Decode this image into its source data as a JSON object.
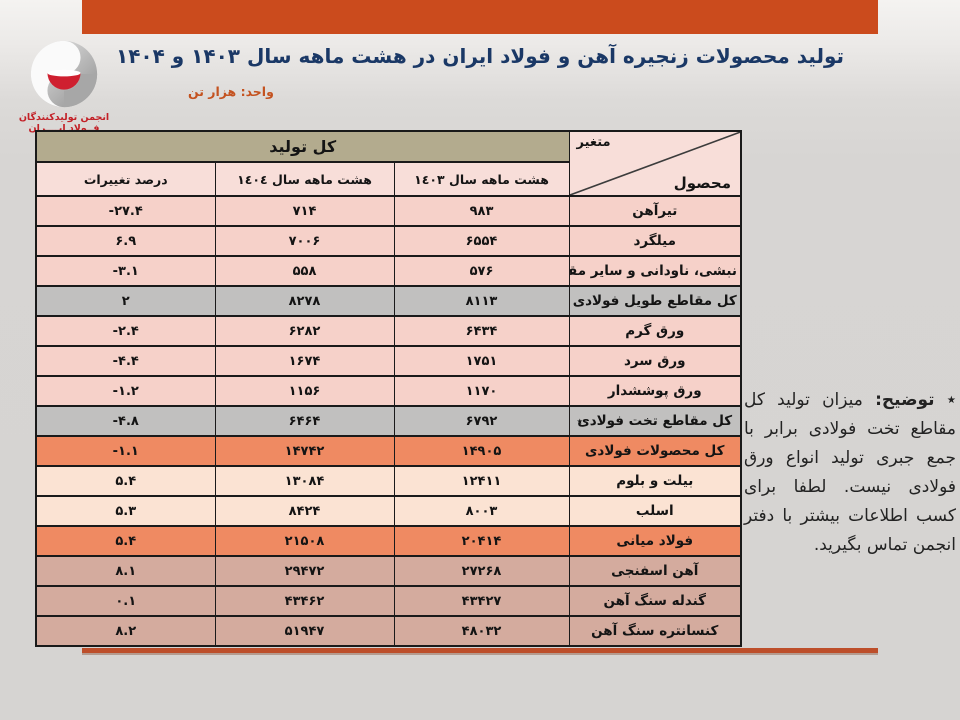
{
  "page": {
    "title": "تولید محصولات زنجیره آهن و فولاد ایران در هشت ماهه سال ۱۴۰۳ و ۱۴۰۴",
    "unit_label": "واحد: هزار تن"
  },
  "logo": {
    "line1": "انجمن تولیدکنندگان",
    "line2": "فــولاد ایــــران"
  },
  "table": {
    "corner": {
      "top": "متغیر",
      "bottom": "محصول"
    },
    "group_header": "کل تولید",
    "col_headers": [
      "هشت ماهه سال ١٤٠٣",
      "هشت ماهه سال ١٤٠٤",
      "درصد تغییرات"
    ],
    "star_glyph": "٭",
    "rows": [
      {
        "product": "تیرآهن",
        "y1403": "۹۸۳",
        "y1404": "۷۱۴",
        "pct": "-۲۷.۴",
        "tone": "pink"
      },
      {
        "product": "میلگرد",
        "y1403": "۶۵۵۴",
        "y1404": "۷۰۰۶",
        "pct": "۶.۹",
        "tone": "pink"
      },
      {
        "product": "نبشی، ناودانی و سایر مقاطع",
        "y1403": "۵۷۶",
        "y1404": "۵۵۸",
        "pct": "-۳.۱",
        "tone": "pink"
      },
      {
        "product": "کل مقاطع طویل فولادی",
        "y1403": "۸۱۱۳",
        "y1404": "۸۲۷۸",
        "pct": "۲",
        "tone": "gray"
      },
      {
        "product": "ورق گرم",
        "y1403": "۶۴۳۴",
        "y1404": "۶۲۸۲",
        "pct": "-۲.۴",
        "tone": "pink"
      },
      {
        "product": "ورق سرد",
        "y1403": "۱۷۵۱",
        "y1404": "۱۶۷۴",
        "pct": "-۴.۴",
        "tone": "pink"
      },
      {
        "product": "ورق پوششدار",
        "y1403": "۱۱۷۰",
        "y1404": "۱۱۵۶",
        "pct": "-۱.۲",
        "tone": "pink"
      },
      {
        "product": "کل مقاطع تخت فولادی",
        "star": true,
        "y1403": "۶۷۹۲",
        "y1404": "۶۴۶۴",
        "pct": "-۴.۸",
        "tone": "gray"
      },
      {
        "product": "کل محصولات فولادی",
        "y1403": "۱۴۹۰۵",
        "y1404": "۱۴۷۴۲",
        "pct": "-۱.۱",
        "tone": "orange"
      },
      {
        "product": "بیلت و بلوم",
        "y1403": "۱۲۴۱۱",
        "y1404": "۱۳۰۸۴",
        "pct": "۵.۴",
        "tone": "peach"
      },
      {
        "product": "اسلب",
        "y1403": "۸۰۰۳",
        "y1404": "۸۴۲۴",
        "pct": "۵.۳",
        "tone": "peach"
      },
      {
        "product": "فولاد میانی",
        "y1403": "۲۰۴۱۴",
        "y1404": "۲۱۵۰۸",
        "pct": "۵.۴",
        "tone": "orange"
      },
      {
        "product": "آهن اسفنجی",
        "y1403": "۲۷۲۶۸",
        "y1404": "۲۹۴۷۲",
        "pct": "۸.۱",
        "tone": "rose"
      },
      {
        "product": "گندله سنگ آهن",
        "y1403": "۴۳۴۲۷",
        "y1404": "۴۳۴۶۲",
        "pct": "۰.۱",
        "tone": "rose"
      },
      {
        "product": "کنسانتره سنگ آهن",
        "y1403": "۴۸۰۳۲",
        "y1404": "۵۱۹۴۷",
        "pct": "۸.۲",
        "tone": "rose"
      }
    ]
  },
  "note": {
    "marker": "٭",
    "label": "توضیح:",
    "text": "میزان تولید کل مقاطع تخت فولادی برابر با جمع جبری تولید انواع ورق فولادی نیست. لطفا برای کسب اطلاعات بیشتر با دفتر انجمن تماس بگیرید."
  },
  "colors": {
    "accent_bar": "#cb4b1d",
    "bottom_line": "#bd4e2a",
    "title_navy": "#1a3866",
    "unit_orange": "#c4521f",
    "logo_red": "#c32027",
    "header_khaki": "#b3ab8e",
    "header_pink": "#f8ded9",
    "row_pink": "#f6d1c9",
    "row_gray": "#c1c0bf",
    "row_orange": "#ef8a62",
    "row_peach": "#fbe3d3",
    "row_rose": "#d4ab9e",
    "border_dark": "#1a1a1a"
  }
}
